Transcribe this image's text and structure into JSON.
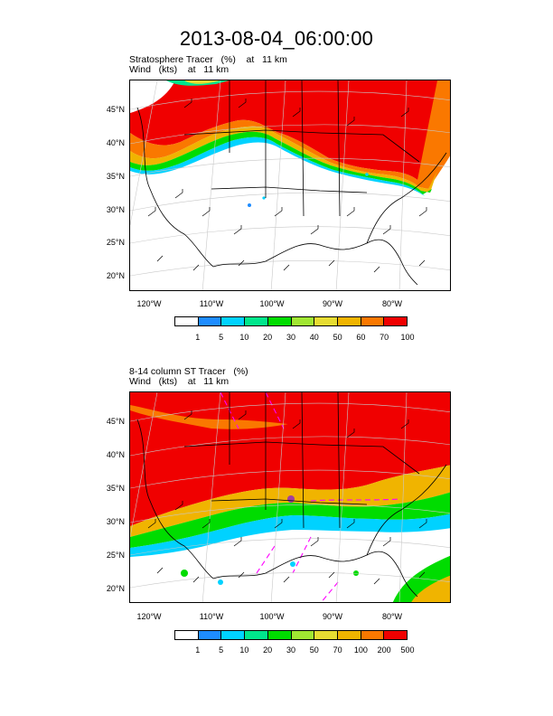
{
  "title": "2013-08-04_06:00:00",
  "panels": [
    {
      "line1": "Stratosphere Tracer   (%)    at   11 km",
      "line2": "Wind   (kts)    at   11 km",
      "lat_labels": [
        "45°N",
        "40°N",
        "35°N",
        "30°N",
        "25°N",
        "20°N"
      ],
      "lon_labels": [
        "120°W",
        "110°W",
        "100°W",
        "90°W",
        "80°W"
      ],
      "colorbar_labels": [
        "1",
        "5",
        "10",
        "20",
        "30",
        "40",
        "50",
        "60",
        "70",
        "100"
      ]
    },
    {
      "line1": "8-14 column ST Tracer   (%)",
      "line2": "Wind   (kts)    at   11 km",
      "lat_labels": [
        "45°N",
        "40°N",
        "35°N",
        "30°N",
        "25°N",
        "20°N"
      ],
      "lon_labels": [
        "120°W",
        "110°W",
        "100°W",
        "90°W",
        "80°W"
      ],
      "colorbar_labels": [
        "1",
        "5",
        "10",
        "20",
        "30",
        "50",
        "70",
        "100",
        "200",
        "500"
      ]
    }
  ],
  "colorbar_colors": [
    "#ffffff",
    "#1e8cff",
    "#00d2ff",
    "#00e68c",
    "#00dc00",
    "#a0e632",
    "#e6dc32",
    "#f0b400",
    "#fa7800",
    "#f00000"
  ]
}
